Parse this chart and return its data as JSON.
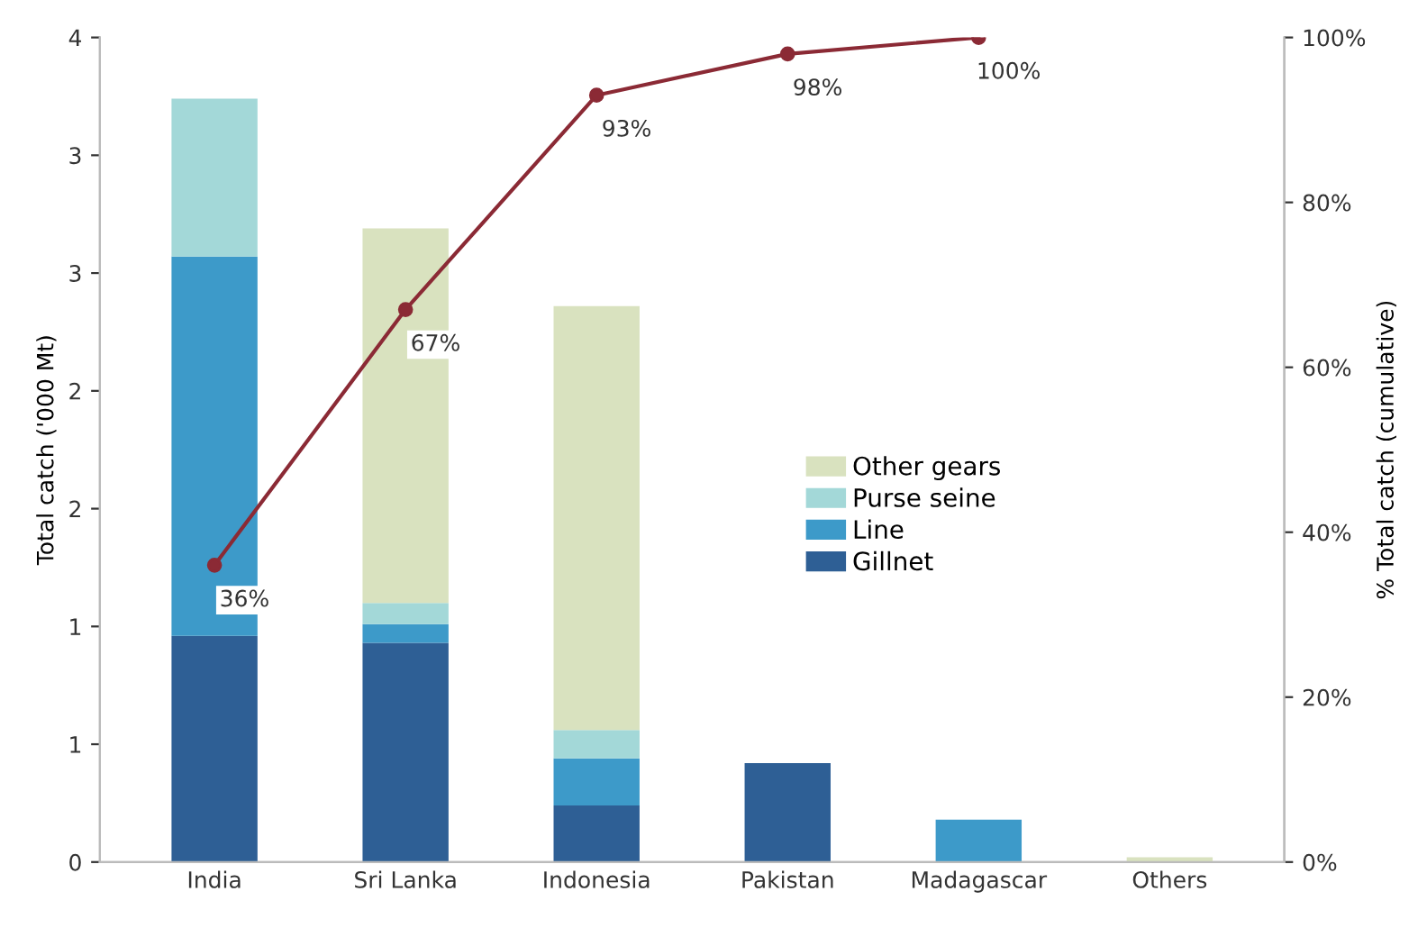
{
  "chart_data": {
    "type": "bar",
    "stacked": true,
    "categories": [
      "India",
      "Sri Lanka",
      "Indonesia",
      "Pakistan",
      "Madagascar",
      "Others"
    ],
    "ylabel": "Total catch ('000 Mt)",
    "y2label": "% Total catch (cumulative)",
    "ylim": [
      0,
      3.5
    ],
    "yticks": [
      0,
      {
        "value": 0.5,
        "label": "1"
      },
      1,
      {
        "value": 1.5,
        "label": "2"
      },
      2,
      {
        "value": 2.5,
        "label": "3"
      },
      3,
      {
        "value": 3.5,
        "label": "4"
      }
    ],
    "y2lim": [
      0,
      100
    ],
    "y2ticks": [
      {
        "value": 0,
        "label": "0%"
      },
      {
        "value": 20,
        "label": "20%"
      },
      {
        "value": 40,
        "label": "40%"
      },
      {
        "value": 60,
        "label": "60%"
      },
      {
        "value": 80,
        "label": "80%"
      },
      {
        "value": 100,
        "label": "100%"
      }
    ],
    "series": [
      {
        "name": "Gillnet",
        "color": "#2e5f95",
        "values": [
          0.96,
          0.93,
          0.24,
          0.42,
          null,
          null
        ]
      },
      {
        "name": "Line",
        "color": "#3d9ac9",
        "values": [
          1.61,
          0.08,
          0.2,
          null,
          0.18,
          null
        ]
      },
      {
        "name": "Purse seine",
        "color": "#a3d8d8",
        "values": [
          0.67,
          0.09,
          0.12,
          null,
          null,
          null
        ]
      },
      {
        "name": "Other gears",
        "color": "#d9e2bf",
        "values": [
          null,
          1.59,
          1.8,
          null,
          null,
          0.02
        ]
      },
      {
        "type": "line",
        "axis": "y2",
        "color": "#8b2a35",
        "marker": "circle",
        "values": [
          36,
          67,
          93,
          98,
          100,
          null
        ],
        "value_labels": [
          "36%",
          "67%",
          "93%",
          "98%",
          "100%",
          null
        ]
      }
    ],
    "legend": "right",
    "grid": false
  }
}
